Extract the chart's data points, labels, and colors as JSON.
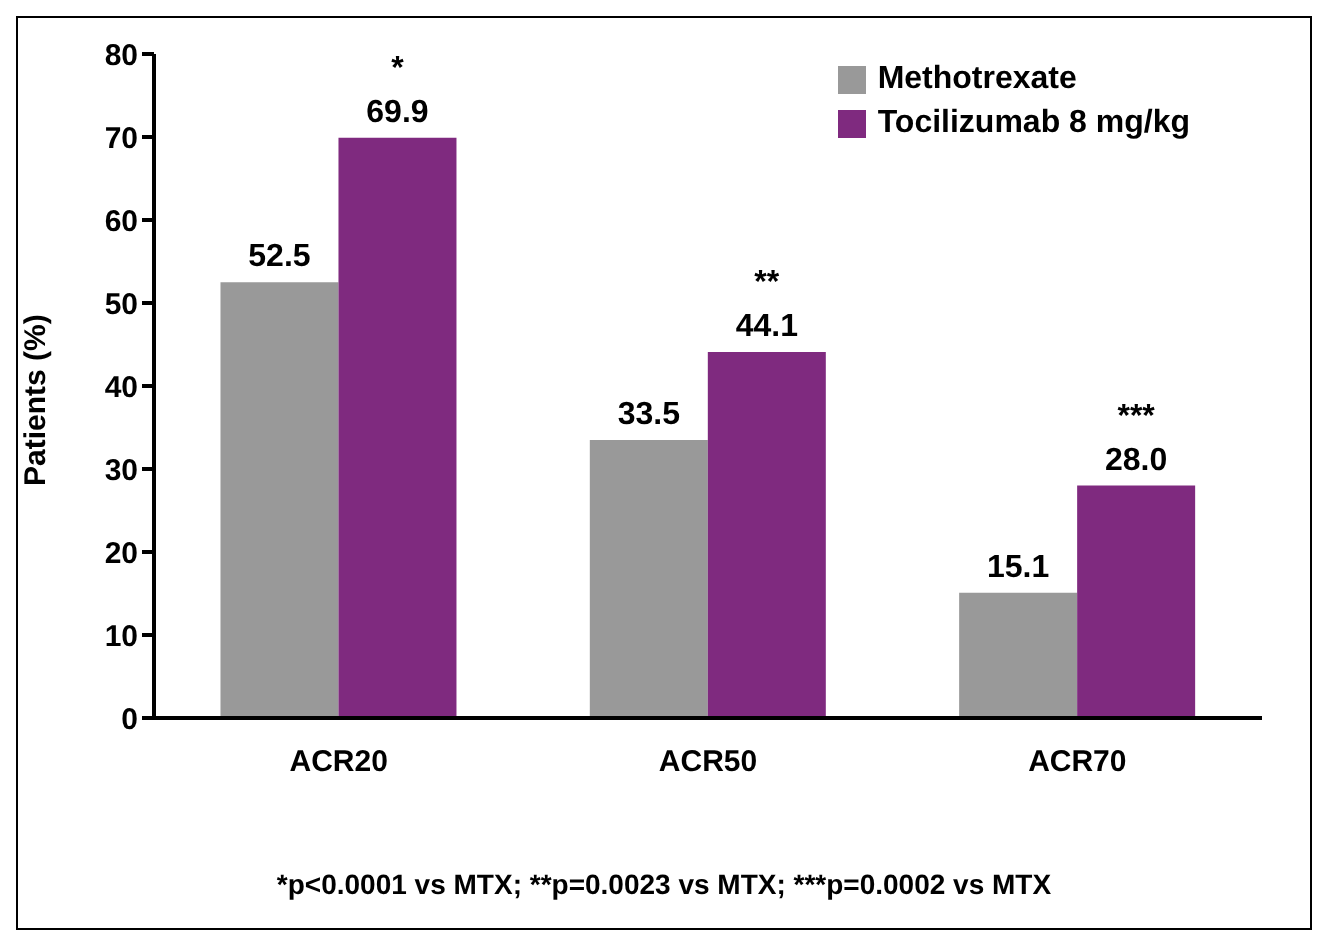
{
  "chart_data": {
    "type": "bar",
    "ylabel": "Patients (%)",
    "categories": [
      "ACR20",
      "ACR50",
      "ACR70"
    ],
    "series": [
      {
        "name": "Methotrexate",
        "color": "#999999",
        "values": [
          52.5,
          33.5,
          15.1
        ],
        "value_labels": [
          "52.5",
          "33.5",
          "15.1"
        ]
      },
      {
        "name": "Tocilizumab 8 mg/kg",
        "color": "#7f2a7f",
        "values": [
          69.9,
          44.1,
          28.0
        ],
        "value_labels": [
          "69.9",
          "44.1",
          "28.0"
        ]
      }
    ],
    "ylim": [
      0,
      80
    ],
    "yticks": [
      0,
      10,
      20,
      30,
      40,
      50,
      60,
      70,
      80
    ],
    "legend": "top right",
    "grid": false,
    "annotations": [
      {
        "text": "*",
        "x": "ACR20",
        "y": 69.9
      },
      {
        "text": "**",
        "x": "ACR50",
        "y": 44.1
      },
      {
        "text": "***",
        "x": "ACR70",
        "y": 28.0
      },
      "*p<0.0001 vs MTX; **p=0.0023 vs MTX; ***p=0.0002 vs MTX"
    ]
  }
}
